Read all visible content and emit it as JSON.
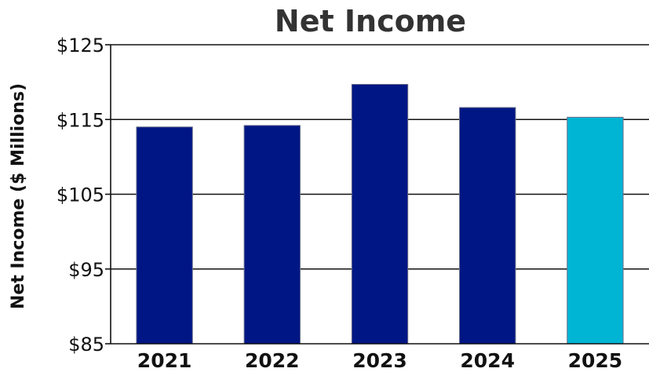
{
  "chart_data": {
    "type": "bar",
    "title": "Net Income",
    "ylabel": "Net Income ($ Millions)",
    "xlabel": "",
    "categories": [
      "2021",
      "2022",
      "2023",
      "2024",
      "2025"
    ],
    "values": [
      114.0,
      114.2,
      119.7,
      116.6,
      115.3
    ],
    "ylim": [
      85,
      125
    ],
    "yticks": [
      85,
      95,
      105,
      115,
      125
    ],
    "ytick_labels": [
      "$85",
      "$95",
      "$105",
      "$115",
      "$125"
    ],
    "grid": true,
    "legend": "none",
    "colors": {
      "bar": "#001684",
      "highlight": "#00b5d4",
      "highlight_category": "2025"
    }
  }
}
